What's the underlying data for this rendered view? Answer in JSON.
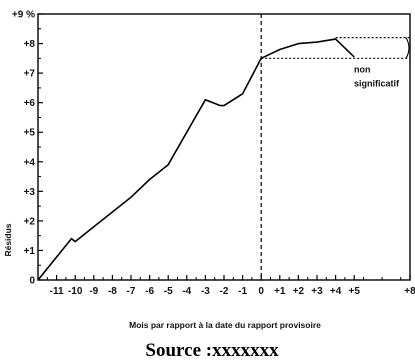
{
  "chart_data": {
    "type": "line",
    "xlabel": "Mois par rapport à la date du rapport provisoire",
    "ylabel": "Résidus",
    "xlim": [
      -12,
      8
    ],
    "ylim": [
      0,
      9
    ],
    "x_tick_values": [
      -11,
      -10,
      -9,
      -8,
      -7,
      -6,
      -5,
      -4,
      -3,
      -2,
      -1,
      0,
      1,
      2,
      3,
      4,
      5,
      8
    ],
    "x_tick_labels": [
      "-11",
      "-10",
      "-9",
      "-8",
      "-7",
      "-6",
      "-5",
      "-4",
      "-3",
      "-2",
      "-1",
      "0",
      "+1",
      "+2",
      "+3",
      "+4",
      "+5",
      "+8"
    ],
    "y_tick_values": [
      0,
      1,
      2,
      3,
      4,
      5,
      6,
      7,
      8,
      9
    ],
    "y_tick_labels": [
      "0",
      "+1",
      "+2",
      "+3",
      "+4",
      "+5",
      "+6",
      "+7",
      "+8",
      "+9 %"
    ],
    "series": [
      {
        "x": [
          -12,
          -10.2,
          -10,
          -9,
          -8,
          -7,
          -6,
          -5,
          -4,
          -3,
          -2.2,
          -2,
          -1,
          0,
          1,
          2,
          3,
          4,
          5
        ],
        "y": [
          0,
          1.4,
          1.3,
          1.8,
          2.3,
          2.8,
          3.4,
          3.9,
          5.0,
          6.1,
          5.9,
          5.9,
          6.3,
          7.5,
          7.8,
          8.0,
          8.05,
          8.15,
          7.55
        ],
        "color": "#000000"
      }
    ],
    "reference_line": {
      "x": 0,
      "style": "dashed"
    },
    "annotation": {
      "text_lines": [
        "non",
        "significatif"
      ],
      "box_y": [
        7.5,
        8.2
      ]
    },
    "grid": false
  },
  "source_text": "Source :xxxxxxx"
}
